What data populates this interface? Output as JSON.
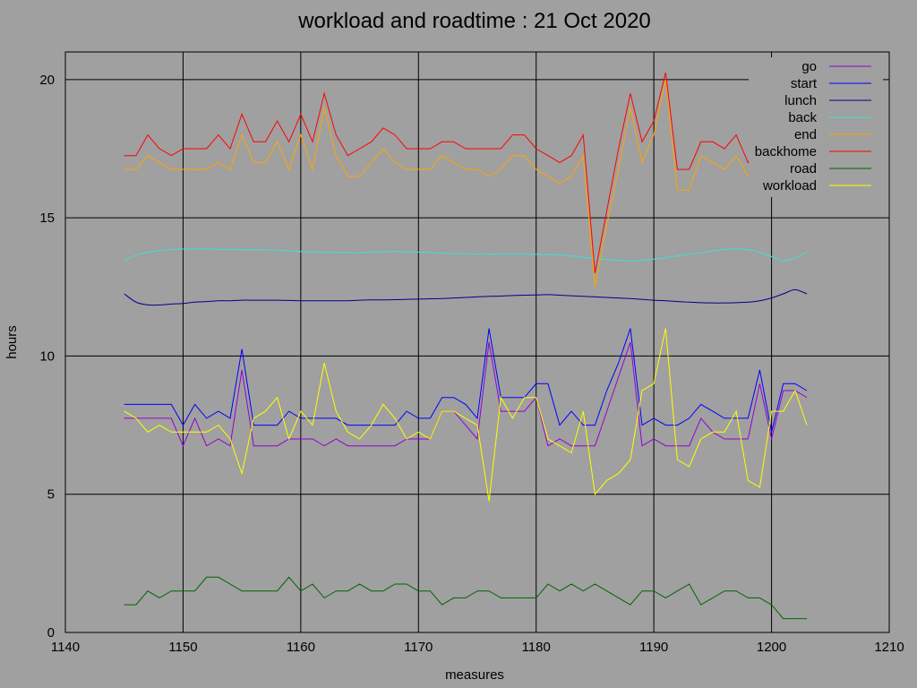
{
  "chart_data": {
    "type": "line",
    "title": "workload and roadtime : 21 Oct 2020",
    "xlabel": "measures",
    "ylabel": "hours",
    "xlim": [
      1140,
      1210
    ],
    "ylim": [
      0,
      21
    ],
    "xticks": [
      1140,
      1150,
      1160,
      1170,
      1180,
      1190,
      1200,
      1210
    ],
    "yticks": [
      0,
      5,
      10,
      15,
      20
    ],
    "grid": true,
    "legend_position": "top-right",
    "background": "#a0a0a0",
    "x": [
      1145,
      1146,
      1147,
      1148,
      1149,
      1150,
      1151,
      1152,
      1153,
      1154,
      1155,
      1156,
      1157,
      1158,
      1159,
      1160,
      1161,
      1162,
      1163,
      1164,
      1165,
      1166,
      1167,
      1168,
      1169,
      1170,
      1171,
      1172,
      1173,
      1174,
      1175,
      1176,
      1177,
      1178,
      1179,
      1180,
      1181,
      1182,
      1183,
      1184,
      1185,
      1186,
      1187,
      1188,
      1189,
      1190,
      1191,
      1192,
      1193,
      1194,
      1195,
      1196,
      1197,
      1198,
      1199,
      1200,
      1201,
      1202,
      1203
    ],
    "series": [
      {
        "name": "go",
        "color": "#9400d3",
        "smooth": false,
        "values": [
          7.75,
          7.75,
          7.75,
          7.75,
          7.75,
          6.75,
          7.75,
          6.75,
          7.0,
          6.75,
          9.5,
          6.75,
          6.75,
          6.75,
          7.0,
          7.0,
          7.0,
          6.75,
          7.0,
          6.75,
          6.75,
          6.75,
          6.75,
          6.75,
          7.0,
          7.0,
          7.0,
          8.0,
          8.0,
          7.5,
          7.0,
          10.5,
          8.0,
          8.0,
          8.0,
          8.5,
          6.75,
          7.0,
          6.75,
          6.75,
          6.75,
          8.0,
          9.25,
          10.5,
          6.75,
          7.0,
          6.75,
          6.75,
          6.75,
          7.75,
          7.25,
          7.0,
          7.0,
          7.0,
          9.0,
          7.0,
          8.75,
          8.75,
          8.5
        ]
      },
      {
        "name": "start",
        "color": "#0000ff",
        "smooth": false,
        "values": [
          8.25,
          8.25,
          8.25,
          8.25,
          8.25,
          7.5,
          8.25,
          7.75,
          8.0,
          7.75,
          10.25,
          7.5,
          7.5,
          7.5,
          8.0,
          7.75,
          7.75,
          7.75,
          7.75,
          7.5,
          7.5,
          7.5,
          7.5,
          7.5,
          8.0,
          7.75,
          7.75,
          8.5,
          8.5,
          8.25,
          7.75,
          11.0,
          8.5,
          8.5,
          8.5,
          9.0,
          9.0,
          7.5,
          8.0,
          7.5,
          7.5,
          8.75,
          9.75,
          11.0,
          7.5,
          7.75,
          7.5,
          7.5,
          7.75,
          8.25,
          8.0,
          7.75,
          7.75,
          7.75,
          9.5,
          7.25,
          9.0,
          9.0,
          8.75
        ]
      },
      {
        "name": "lunch",
        "color": "#00008b",
        "smooth": true,
        "values": [
          12.25,
          11.95,
          11.85,
          11.85,
          11.88,
          11.9,
          11.95,
          11.97,
          12.0,
          12.0,
          12.02,
          12.02,
          12.02,
          12.02,
          12.01,
          12.0,
          12.0,
          12.0,
          12.0,
          12.0,
          12.02,
          12.03,
          12.03,
          12.04,
          12.05,
          12.06,
          12.07,
          12.08,
          12.1,
          12.12,
          12.14,
          12.16,
          12.17,
          12.19,
          12.2,
          12.21,
          12.22,
          12.2,
          12.18,
          12.16,
          12.14,
          12.12,
          12.1,
          12.08,
          12.05,
          12.02,
          12.0,
          11.97,
          11.95,
          11.93,
          11.92,
          11.92,
          11.93,
          11.95,
          12.0,
          12.1,
          12.25,
          12.4,
          12.25
        ]
      },
      {
        "name": "back",
        "color": "#40e0d0",
        "smooth": true,
        "values": [
          13.45,
          13.65,
          13.75,
          13.82,
          13.86,
          13.87,
          13.87,
          13.87,
          13.86,
          13.86,
          13.85,
          13.85,
          13.84,
          13.83,
          13.8,
          13.78,
          13.76,
          13.75,
          13.75,
          13.74,
          13.74,
          13.76,
          13.77,
          13.78,
          13.77,
          13.76,
          13.74,
          13.72,
          13.71,
          13.7,
          13.69,
          13.69,
          13.68,
          13.68,
          13.68,
          13.68,
          13.67,
          13.66,
          13.62,
          13.58,
          13.53,
          13.49,
          13.46,
          13.44,
          13.46,
          13.5,
          13.56,
          13.62,
          13.68,
          13.74,
          13.8,
          13.86,
          13.88,
          13.85,
          13.75,
          13.6,
          13.45,
          13.55,
          13.75
        ]
      },
      {
        "name": "end",
        "color": "#ffa500",
        "smooth": false,
        "values": [
          16.75,
          16.75,
          17.25,
          17.0,
          16.75,
          16.75,
          16.75,
          16.75,
          17.0,
          16.75,
          18.0,
          17.0,
          17.0,
          17.75,
          16.75,
          18.0,
          16.75,
          19.0,
          17.25,
          16.5,
          16.5,
          17.0,
          17.5,
          17.0,
          16.75,
          16.75,
          16.75,
          17.25,
          17.0,
          16.75,
          16.75,
          16.5,
          16.75,
          17.25,
          17.25,
          16.75,
          16.5,
          16.25,
          16.5,
          17.25,
          12.5,
          14.75,
          16.75,
          19.0,
          17.0,
          18.0,
          20.0,
          16.0,
          16.0,
          17.25,
          17.0,
          16.75,
          17.25,
          16.5,
          17.0,
          16.5,
          17.75,
          18.5,
          17.75
        ]
      },
      {
        "name": "backhome",
        "color": "#ff0000",
        "smooth": false,
        "values": [
          17.25,
          17.25,
          18.0,
          17.5,
          17.25,
          17.5,
          17.5,
          17.5,
          18.0,
          17.5,
          18.75,
          17.75,
          17.75,
          18.5,
          17.75,
          18.75,
          17.75,
          19.5,
          18.0,
          17.25,
          17.5,
          17.75,
          18.25,
          18.0,
          17.5,
          17.5,
          17.5,
          17.75,
          17.75,
          17.5,
          17.5,
          17.5,
          17.5,
          18.0,
          18.0,
          17.5,
          17.25,
          17.0,
          17.25,
          18.0,
          13.0,
          15.25,
          17.5,
          19.5,
          17.75,
          18.5,
          20.25,
          16.75,
          16.75,
          17.75,
          17.75,
          17.5,
          18.0,
          17.0,
          17.75,
          17.0,
          18.0,
          18.75,
          18.0
        ]
      },
      {
        "name": "road",
        "color": "#006400",
        "smooth": false,
        "values": [
          1.0,
          1.0,
          1.5,
          1.25,
          1.5,
          1.5,
          1.5,
          2.0,
          2.0,
          1.75,
          1.5,
          1.5,
          1.5,
          1.5,
          2.0,
          1.5,
          1.75,
          1.25,
          1.5,
          1.5,
          1.75,
          1.5,
          1.5,
          1.75,
          1.75,
          1.5,
          1.5,
          1.0,
          1.25,
          1.25,
          1.5,
          1.5,
          1.25,
          1.25,
          1.25,
          1.25,
          1.75,
          1.5,
          1.75,
          1.5,
          1.75,
          1.5,
          1.25,
          1.0,
          1.5,
          1.5,
          1.25,
          1.5,
          1.75,
          1.0,
          1.25,
          1.5,
          1.5,
          1.25,
          1.25,
          1.0,
          0.5,
          0.5,
          0.5
        ]
      },
      {
        "name": "workload",
        "color": "#ffff00",
        "smooth": false,
        "values": [
          8.0,
          7.75,
          7.25,
          7.5,
          7.25,
          7.25,
          7.25,
          7.25,
          7.5,
          7.0,
          5.75,
          7.75,
          8.0,
          8.5,
          7.0,
          8.0,
          7.5,
          9.75,
          8.0,
          7.25,
          7.0,
          7.5,
          8.25,
          7.75,
          7.0,
          7.25,
          7.0,
          8.0,
          8.0,
          7.75,
          7.5,
          4.75,
          8.5,
          7.75,
          8.5,
          8.5,
          7.0,
          6.75,
          6.5,
          8.0,
          5.0,
          5.5,
          5.75,
          6.25,
          8.75,
          9.0,
          11.0,
          6.25,
          6.0,
          7.0,
          7.25,
          7.25,
          8.0,
          5.5,
          5.25,
          8.0,
          8.0,
          8.75,
          7.5
        ]
      }
    ]
  }
}
